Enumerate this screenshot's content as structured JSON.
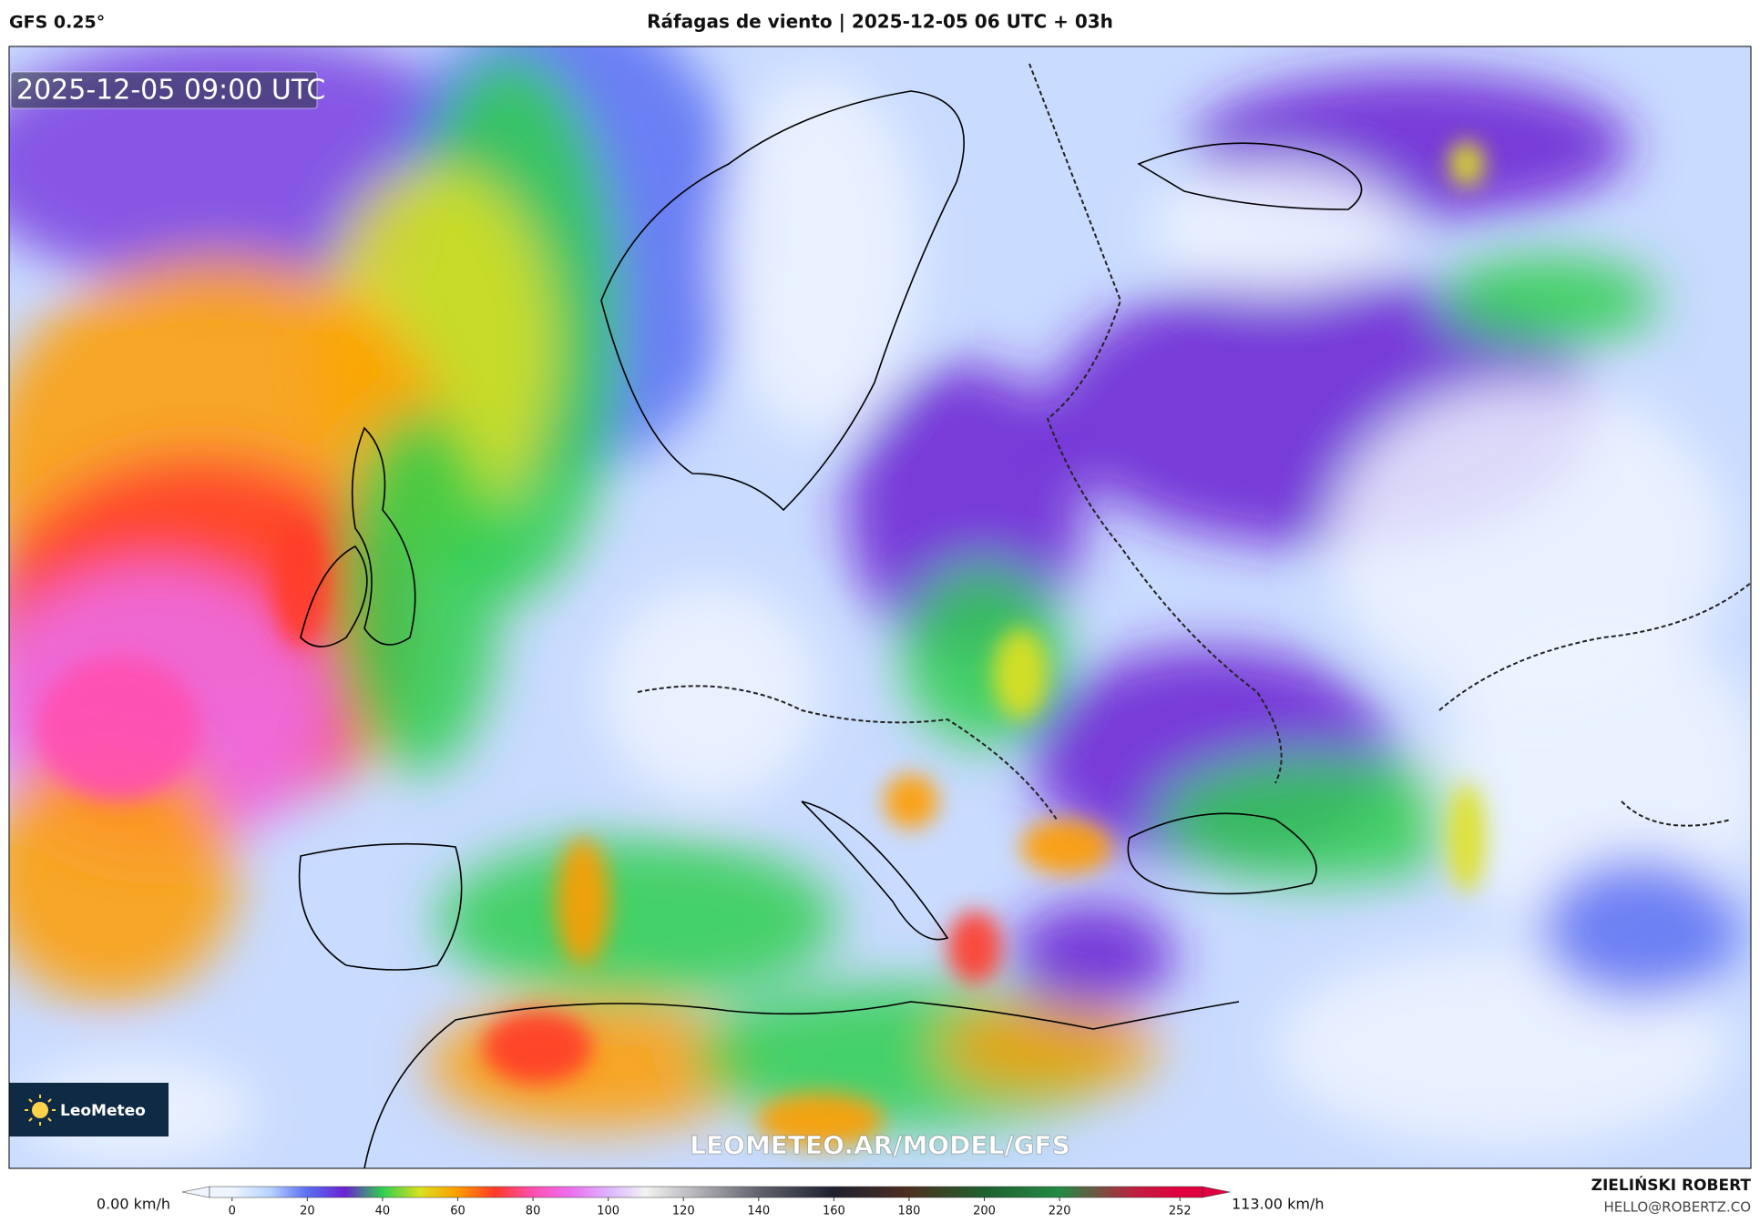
{
  "header": {
    "model": "GFS 0.25°",
    "title": "Ráfagas de viento | 2025-12-05 06 UTC + 03h"
  },
  "map": {
    "valid_time": "2025-12-05 09:00 UTC",
    "logo": "LeoMeteo",
    "watermark": "LEOMETEO.AR/MODEL/GFS"
  },
  "colorbar": {
    "min_label": "0.00 km/h",
    "max_label": "113.00 km/h",
    "lim": [
      -6,
      258
    ],
    "ticks": [
      0,
      20,
      40,
      60,
      80,
      100,
      120,
      140,
      160,
      180,
      200,
      220,
      252
    ],
    "stops": [
      {
        "value": 0,
        "color": "#eef5ff"
      },
      {
        "value": 10,
        "color": "#b9d3ff"
      },
      {
        "value": 20,
        "color": "#5b6ef2"
      },
      {
        "value": 30,
        "color": "#6a22d2"
      },
      {
        "value": 40,
        "color": "#2fcf4f"
      },
      {
        "value": 50,
        "color": "#d9e020"
      },
      {
        "value": 60,
        "color": "#ff9c00"
      },
      {
        "value": 70,
        "color": "#ff3a2a"
      },
      {
        "value": 80,
        "color": "#ff4fb0"
      },
      {
        "value": 90,
        "color": "#ec6ff0"
      },
      {
        "value": 100,
        "color": "#dcb4ff"
      },
      {
        "value": 110,
        "color": "#f2f2f2"
      },
      {
        "value": 120,
        "color": "#c4c4c8"
      },
      {
        "value": 140,
        "color": "#62626e"
      },
      {
        "value": 160,
        "color": "#1e2030"
      },
      {
        "value": 180,
        "color": "#4e2e20"
      },
      {
        "value": 200,
        "color": "#1f6030"
      },
      {
        "value": 220,
        "color": "#238a44"
      },
      {
        "value": 240,
        "color": "#c02040"
      },
      {
        "value": 252,
        "color": "#e00040"
      }
    ]
  },
  "credits": {
    "author": "ZIELIŃSKI ROBERT",
    "email": "HELLO@ROBERTZ.CO"
  }
}
